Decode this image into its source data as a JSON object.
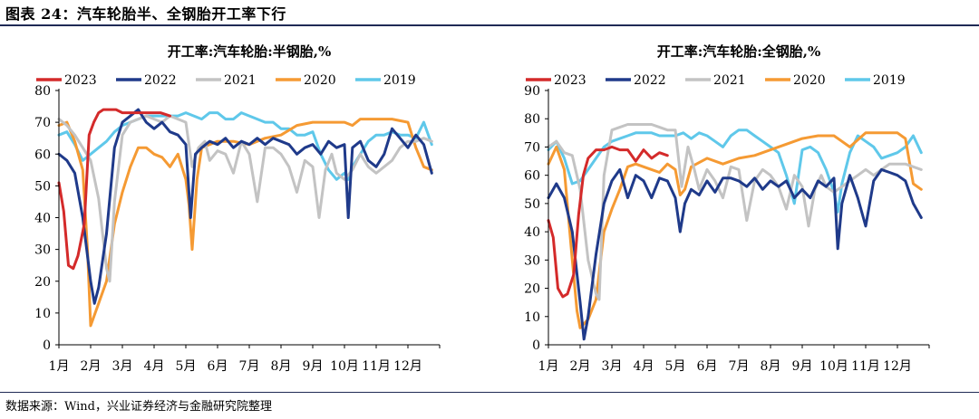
{
  "figure": {
    "title": "图表 24：汽车轮胎半、全钢胎开工率下行",
    "source": "数据来源：Wind，兴业证券经济与金融研究院整理"
  },
  "colors": {
    "2023": "#d42a2a",
    "2022": "#1f3a8a",
    "2021": "#c3c3c3",
    "2020": "#f59a33",
    "2019": "#5fc8ea",
    "axis": "#000000",
    "rule": "#1f2a55"
  },
  "chart_data": [
    {
      "type": "line",
      "title": "开工率:汽车轮胎:半钢胎,%",
      "xlabel": "",
      "ylabel": "",
      "ylim": [
        0,
        80
      ],
      "yticks": [
        0,
        10,
        20,
        30,
        40,
        50,
        60,
        70,
        80
      ],
      "xlim": [
        1,
        13
      ],
      "xtick_labels": [
        "1月",
        "2月",
        "3月",
        "4月",
        "5月",
        "6月",
        "7月",
        "8月",
        "9月",
        "10月",
        "11月",
        "12月"
      ],
      "grid": false,
      "legend": "top",
      "series": [
        {
          "name": "2023",
          "x": [
            1.0,
            1.15,
            1.3,
            1.45,
            1.6,
            1.8,
            1.95,
            2.1,
            2.25,
            2.4,
            2.6,
            2.8,
            3.0,
            3.3,
            3.6,
            3.9,
            4.2,
            4.5
          ],
          "y": [
            51,
            42,
            25,
            24,
            28,
            38,
            66,
            70,
            73,
            74,
            74,
            74,
            73,
            73,
            73,
            73,
            73,
            72
          ]
        },
        {
          "name": "2022",
          "x": [
            1.0,
            1.25,
            1.5,
            1.75,
            2.0,
            2.12,
            2.25,
            2.5,
            2.75,
            3.0,
            3.25,
            3.5,
            3.75,
            4.0,
            4.25,
            4.5,
            4.75,
            5.0,
            5.15,
            5.3,
            5.5,
            5.75,
            6.0,
            6.25,
            6.5,
            6.75,
            7.0,
            7.25,
            7.5,
            7.75,
            8.0,
            8.25,
            8.5,
            8.75,
            9.0,
            9.25,
            9.5,
            9.75,
            10.0,
            10.12,
            10.25,
            10.5,
            10.75,
            11.0,
            11.25,
            11.5,
            11.75,
            12.0,
            12.25,
            12.5,
            12.75
          ],
          "y": [
            60,
            58,
            54,
            40,
            20,
            13,
            18,
            35,
            62,
            70,
            72,
            74,
            70,
            68,
            70,
            67,
            66,
            63,
            40,
            60,
            62,
            64,
            63,
            65,
            62,
            64,
            63,
            65,
            63,
            65,
            64,
            63,
            60,
            62,
            63,
            60,
            64,
            62,
            63,
            40,
            62,
            64,
            58,
            56,
            60,
            68,
            65,
            62,
            66,
            63,
            54
          ]
        },
        {
          "name": "2021",
          "x": [
            1.0,
            1.25,
            1.5,
            1.75,
            2.0,
            2.25,
            2.5,
            2.6,
            2.75,
            3.0,
            3.25,
            3.5,
            3.75,
            4.0,
            4.25,
            4.5,
            4.75,
            5.0,
            5.2,
            5.4,
            5.6,
            5.75,
            6.0,
            6.25,
            6.5,
            6.75,
            7.0,
            7.25,
            7.5,
            7.75,
            8.0,
            8.25,
            8.5,
            8.75,
            9.0,
            9.2,
            9.4,
            9.6,
            9.75,
            10.0,
            10.25,
            10.5,
            10.75,
            11.0,
            11.25,
            11.5,
            11.75,
            12.0,
            12.25,
            12.5,
            12.75
          ],
          "y": [
            71,
            69,
            66,
            62,
            58,
            46,
            24,
            20,
            45,
            66,
            70,
            71,
            72,
            71,
            70,
            72,
            71,
            70,
            56,
            62,
            64,
            58,
            61,
            60,
            54,
            64,
            60,
            45,
            62,
            62,
            60,
            56,
            48,
            58,
            56,
            40,
            55,
            60,
            54,
            52,
            55,
            60,
            56,
            54,
            56,
            58,
            62,
            64,
            64,
            65,
            64
          ]
        },
        {
          "name": "2020",
          "x": [
            1.0,
            1.25,
            1.5,
            1.75,
            1.9,
            2.0,
            2.25,
            2.5,
            2.75,
            3.0,
            3.25,
            3.5,
            3.75,
            4.0,
            4.25,
            4.5,
            4.75,
            5.0,
            5.1,
            5.2,
            5.35,
            5.5,
            6.0,
            6.5,
            7.0,
            7.5,
            8.0,
            8.5,
            9.0,
            9.5,
            10.0,
            10.25,
            10.5,
            11.0,
            11.5,
            12.0,
            12.25,
            12.5,
            12.75
          ],
          "y": [
            69,
            70,
            64,
            55,
            30,
            6,
            13,
            20,
            38,
            48,
            56,
            62,
            62,
            60,
            59,
            56,
            60,
            52,
            44,
            30,
            52,
            62,
            64,
            64,
            63,
            65,
            66,
            69,
            70,
            70,
            70,
            69,
            71,
            71,
            71,
            70,
            62,
            56,
            55
          ]
        },
        {
          "name": "2019",
          "x": [
            1.0,
            1.25,
            1.5,
            1.75,
            2.0,
            2.25,
            2.5,
            2.75,
            3.0,
            3.25,
            3.5,
            3.75,
            4.0,
            4.25,
            4.5,
            4.75,
            5.0,
            5.25,
            5.5,
            5.75,
            6.0,
            6.25,
            6.5,
            6.75,
            7.0,
            7.25,
            7.5,
            7.75,
            8.0,
            8.25,
            8.5,
            8.75,
            9.0,
            9.25,
            9.5,
            9.75,
            10.0,
            10.12,
            10.25,
            10.5,
            10.75,
            11.0,
            11.25,
            11.5,
            11.75,
            12.0,
            12.25,
            12.5,
            12.75
          ],
          "y": [
            66,
            67,
            63,
            58,
            60,
            62,
            64,
            67,
            69,
            70,
            71,
            72,
            72,
            72,
            72,
            72,
            73,
            72,
            71,
            73,
            73,
            71,
            71,
            73,
            72,
            71,
            70,
            70,
            68,
            68,
            66,
            66,
            67,
            60,
            55,
            52,
            54,
            52,
            56,
            60,
            64,
            66,
            66,
            67,
            66,
            66,
            65,
            70,
            63
          ]
        }
      ]
    },
    {
      "type": "line",
      "title": "开工率:汽车轮胎:全钢胎,%",
      "xlabel": "",
      "ylabel": "",
      "ylim": [
        0,
        90
      ],
      "yticks": [
        0,
        10,
        20,
        30,
        40,
        50,
        60,
        70,
        80,
        90
      ],
      "xlim": [
        1,
        13
      ],
      "xtick_labels": [
        "1月",
        "2月",
        "3月",
        "4月",
        "5月",
        "6月",
        "7月",
        "8月",
        "9月",
        "10月",
        "11月",
        "12月"
      ],
      "grid": false,
      "legend": "top",
      "series": [
        {
          "name": "2023",
          "x": [
            1.0,
            1.15,
            1.3,
            1.45,
            1.6,
            1.8,
            1.95,
            2.1,
            2.25,
            2.5,
            2.75,
            3.0,
            3.25,
            3.5,
            3.75,
            4.0,
            4.25,
            4.5,
            4.75
          ],
          "y": [
            44,
            38,
            20,
            17,
            18,
            25,
            46,
            60,
            66,
            69,
            69,
            70,
            69,
            69,
            65,
            69,
            66,
            68,
            67
          ]
        },
        {
          "name": "2022",
          "x": [
            1.0,
            1.25,
            1.5,
            1.75,
            2.0,
            2.12,
            2.25,
            2.5,
            2.75,
            3.0,
            3.25,
            3.5,
            3.75,
            4.0,
            4.25,
            4.5,
            4.75,
            5.0,
            5.15,
            5.3,
            5.5,
            5.75,
            6.0,
            6.25,
            6.5,
            6.75,
            7.0,
            7.25,
            7.5,
            7.75,
            8.0,
            8.25,
            8.5,
            8.75,
            9.0,
            9.25,
            9.5,
            9.75,
            10.0,
            10.12,
            10.25,
            10.5,
            10.75,
            11.0,
            11.25,
            11.5,
            11.75,
            12.0,
            12.25,
            12.5,
            12.75
          ],
          "y": [
            52,
            57,
            52,
            40,
            15,
            2,
            10,
            32,
            50,
            58,
            62,
            52,
            60,
            58,
            52,
            59,
            58,
            52,
            40,
            50,
            55,
            53,
            58,
            54,
            59,
            59,
            58,
            56,
            59,
            55,
            58,
            56,
            58,
            52,
            55,
            52,
            58,
            56,
            59,
            34,
            50,
            60,
            52,
            42,
            58,
            62,
            61,
            60,
            58,
            50,
            45
          ]
        },
        {
          "name": "2021",
          "x": [
            1.0,
            1.25,
            1.5,
            1.75,
            2.0,
            2.25,
            2.5,
            2.6,
            2.75,
            3.0,
            3.25,
            3.5,
            3.75,
            4.0,
            4.25,
            4.5,
            4.75,
            5.0,
            5.2,
            5.4,
            5.6,
            5.75,
            6.0,
            6.25,
            6.5,
            6.75,
            7.0,
            7.25,
            7.5,
            7.75,
            8.0,
            8.25,
            8.5,
            8.75,
            9.0,
            9.2,
            9.4,
            9.6,
            9.75,
            10.0,
            10.25,
            10.5,
            10.75,
            11.0,
            11.25,
            11.5,
            11.75,
            12.0,
            12.25,
            12.5,
            12.75
          ],
          "y": [
            70,
            72,
            68,
            67,
            55,
            30,
            18,
            16,
            60,
            76,
            77,
            78,
            78,
            78,
            78,
            77,
            76,
            76,
            56,
            70,
            62,
            55,
            62,
            58,
            52,
            63,
            62,
            44,
            58,
            62,
            60,
            56,
            48,
            60,
            56,
            42,
            55,
            60,
            56,
            54,
            56,
            58,
            60,
            62,
            60,
            62,
            64,
            64,
            64,
            63,
            62
          ]
        },
        {
          "name": "2020",
          "x": [
            1.0,
            1.25,
            1.5,
            1.75,
            1.9,
            2.0,
            2.25,
            2.5,
            2.75,
            3.0,
            3.25,
            3.5,
            3.75,
            4.0,
            4.25,
            4.5,
            4.75,
            5.0,
            5.15,
            5.3,
            5.5,
            6.0,
            6.5,
            7.0,
            7.5,
            8.0,
            8.5,
            9.0,
            9.5,
            10.0,
            10.25,
            10.5,
            11.0,
            11.5,
            12.0,
            12.25,
            12.5,
            12.75
          ],
          "y": [
            64,
            70,
            62,
            30,
            12,
            6,
            9,
            16,
            40,
            48,
            55,
            63,
            64,
            63,
            62,
            61,
            64,
            62,
            53,
            55,
            63,
            66,
            64,
            66,
            67,
            69,
            71,
            73,
            74,
            74,
            72,
            70,
            75,
            75,
            75,
            73,
            57,
            55
          ]
        },
        {
          "name": "2019",
          "x": [
            1.0,
            1.25,
            1.5,
            1.75,
            2.0,
            2.25,
            2.5,
            2.75,
            3.0,
            3.25,
            3.5,
            3.75,
            4.0,
            4.25,
            4.5,
            4.75,
            5.0,
            5.25,
            5.5,
            5.75,
            6.0,
            6.25,
            6.5,
            6.75,
            7.0,
            7.25,
            7.5,
            7.75,
            8.0,
            8.25,
            8.5,
            8.75,
            9.0,
            9.25,
            9.5,
            9.75,
            10.0,
            10.12,
            10.25,
            10.5,
            10.75,
            11.0,
            11.25,
            11.5,
            11.75,
            12.0,
            12.25,
            12.5,
            12.75
          ],
          "y": [
            69,
            72,
            66,
            57,
            58,
            62,
            66,
            70,
            72,
            73,
            74,
            75,
            75,
            75,
            74,
            74,
            74,
            75,
            73,
            75,
            74,
            72,
            70,
            74,
            76,
            76,
            74,
            72,
            70,
            68,
            60,
            50,
            69,
            70,
            68,
            62,
            54,
            47,
            57,
            68,
            74,
            72,
            70,
            66,
            67,
            68,
            70,
            74,
            68
          ]
        }
      ]
    }
  ]
}
